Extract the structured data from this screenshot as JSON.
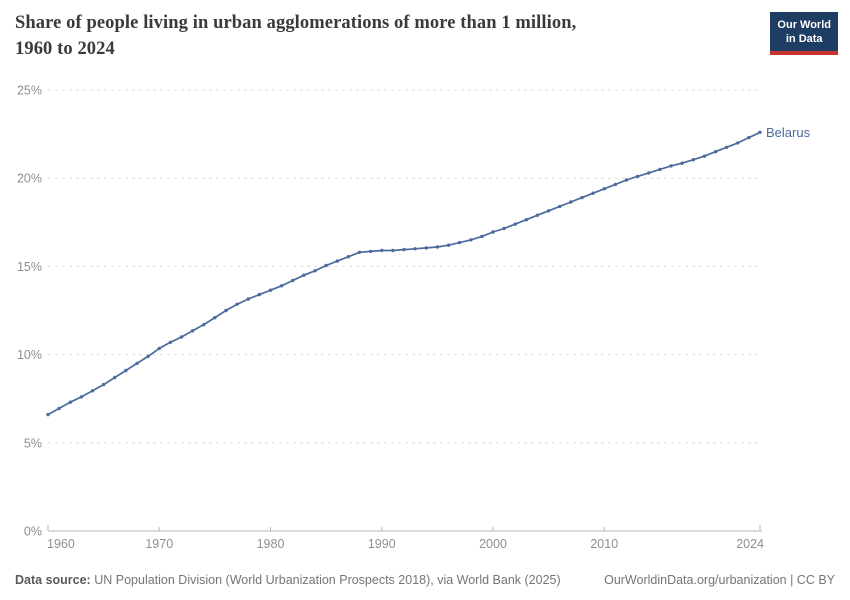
{
  "header": {
    "title_line1": "Share of people living in urban agglomerations of more than 1 million,",
    "title_line2": "1960 to 2024"
  },
  "logo": {
    "line1": "Our World",
    "line2": "in Data"
  },
  "footer": {
    "datasource_label": "Data source:",
    "datasource_text": "UN Population Division (World Urbanization Prospects 2018), via World Bank (2025)",
    "credit": "OurWorldinData.org/urbanization | CC BY"
  },
  "colors": {
    "line": "#4c6a9c",
    "series_label": "#4c6a9c",
    "grid": "#dedede",
    "axis": "#b8b8b8",
    "tick_label": "#8f8f8f",
    "logo_bg": "#1d3d63",
    "logo_red": "#c7342f",
    "title_text": "#3a3a3a",
    "footer_text": "#757575"
  },
  "chart_data": {
    "type": "line",
    "title": "Share of people living in urban agglomerations of more than 1 million, 1960 to 2024",
    "unit": "%",
    "grid": "dashed-horizontal",
    "legend_position": "end-of-line",
    "xlim": [
      1960,
      2024
    ],
    "ylim": [
      0,
      25
    ],
    "xticks": [
      1960,
      1970,
      1980,
      1990,
      2000,
      2010,
      2024
    ],
    "yticks": [
      0,
      5,
      10,
      15,
      20,
      25
    ],
    "ytick_suffix": "%",
    "series": [
      {
        "name": "Belarus",
        "x": [
          1960,
          1961,
          1962,
          1963,
          1964,
          1965,
          1966,
          1967,
          1968,
          1969,
          1970,
          1971,
          1972,
          1973,
          1974,
          1975,
          1976,
          1977,
          1978,
          1979,
          1980,
          1981,
          1982,
          1983,
          1984,
          1985,
          1986,
          1987,
          1988,
          1989,
          1990,
          1991,
          1992,
          1993,
          1994,
          1995,
          1996,
          1997,
          1998,
          1999,
          2000,
          2001,
          2002,
          2003,
          2004,
          2005,
          2006,
          2007,
          2008,
          2009,
          2010,
          2011,
          2012,
          2013,
          2014,
          2015,
          2016,
          2017,
          2018,
          2019,
          2020,
          2021,
          2022,
          2023,
          2024
        ],
        "values": [
          6.6,
          6.95,
          7.3,
          7.6,
          7.95,
          8.3,
          8.7,
          9.1,
          9.5,
          9.9,
          10.35,
          10.7,
          11.0,
          11.35,
          11.7,
          12.1,
          12.5,
          12.85,
          13.15,
          13.4,
          13.65,
          13.9,
          14.2,
          14.5,
          14.75,
          15.05,
          15.3,
          15.55,
          15.8,
          15.85,
          15.9,
          15.9,
          15.95,
          16.0,
          16.05,
          16.1,
          16.2,
          16.35,
          16.5,
          16.7,
          16.95,
          17.15,
          17.4,
          17.65,
          17.9,
          18.15,
          18.4,
          18.65,
          18.9,
          19.15,
          19.4,
          19.65,
          19.9,
          20.1,
          20.3,
          20.5,
          20.7,
          20.85,
          21.05,
          21.25,
          21.5,
          21.75,
          22.0,
          22.3,
          22.6
        ]
      }
    ]
  }
}
